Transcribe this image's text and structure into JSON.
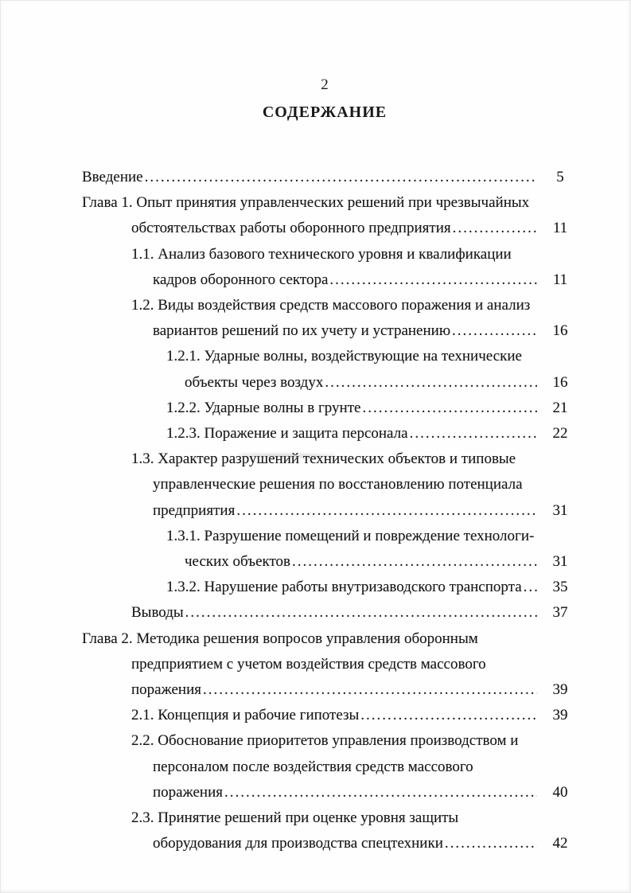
{
  "page": {
    "folio": "2",
    "title": "СОДЕРЖАНИЕ"
  },
  "toc": {
    "leader": "..........................................................................................................................",
    "lines": [
      {
        "indent": 0,
        "text": "Введение",
        "page": "5"
      },
      {
        "indent": 0,
        "text": "Глава 1. Опыт принятия управленческих решений при чрезвычайных",
        "page": ""
      },
      {
        "indent": 1,
        "text": "обстоятельствах работы оборонного предприятия",
        "page": "11"
      },
      {
        "indent": 1,
        "text": "1.1. Анализ базового технического уровня и квалификации",
        "page": ""
      },
      {
        "indent": 2,
        "text": "кадров оборонного сектора",
        "page": "11"
      },
      {
        "indent": 1,
        "text": "1.2. Виды воздействия средств массового поражения и анализ",
        "page": ""
      },
      {
        "indent": 2,
        "text": "вариантов решений по их учету и устранению",
        "page": "16"
      },
      {
        "indent": 3,
        "text": "1.2.1. Ударные волны, воздействующие на технические",
        "page": ""
      },
      {
        "indent": 4,
        "text": "объекты через воздух",
        "page": "16"
      },
      {
        "indent": 3,
        "text": "1.2.2. Ударные волны в грунте",
        "page": "21"
      },
      {
        "indent": 3,
        "text": "1.2.3. Поражение и защита персонала",
        "page": "22"
      },
      {
        "indent": 1,
        "text": "1.3. Характер разрушений технических объектов и типовые",
        "page": ""
      },
      {
        "indent": 2,
        "text": "управленческие решения по восстановлению потенциала",
        "page": ""
      },
      {
        "indent": 2,
        "text": "предприятия",
        "page": "31"
      },
      {
        "indent": 3,
        "text": "1.3.1. Разрушение помещений и повреждение технологи-",
        "page": ""
      },
      {
        "indent": 4,
        "text": "ческих объектов",
        "page": "31"
      },
      {
        "indent": 3,
        "text": "1.3.2. Нарушение работы внутризаводского транспорта",
        "page": "35"
      },
      {
        "indent": 1,
        "text": "Выводы",
        "page": "37"
      },
      {
        "indent": 0,
        "text": "Глава 2. Методика решения вопросов управления оборонным",
        "page": ""
      },
      {
        "indent": 1,
        "text": "предприятием с учетом воздействия средств массового",
        "page": ""
      },
      {
        "indent": 1,
        "text": "поражения",
        "page": "39"
      },
      {
        "indent": 1,
        "text": "2.1. Концепция и рабочие гипотезы",
        "page": "39"
      },
      {
        "indent": 1,
        "text": "2.2. Обоснование приоритетов управления производством и",
        "page": ""
      },
      {
        "indent": 2,
        "text": "персоналом после воздействия средств массового",
        "page": ""
      },
      {
        "indent": 2,
        "text": "поражения",
        "page": "40"
      },
      {
        "indent": 1,
        "text": "2.3. Принятие решений при оценке уровня защиты",
        "page": ""
      },
      {
        "indent": 2,
        "text": "оборудования для производства спецтехники",
        "page": "42"
      }
    ]
  }
}
